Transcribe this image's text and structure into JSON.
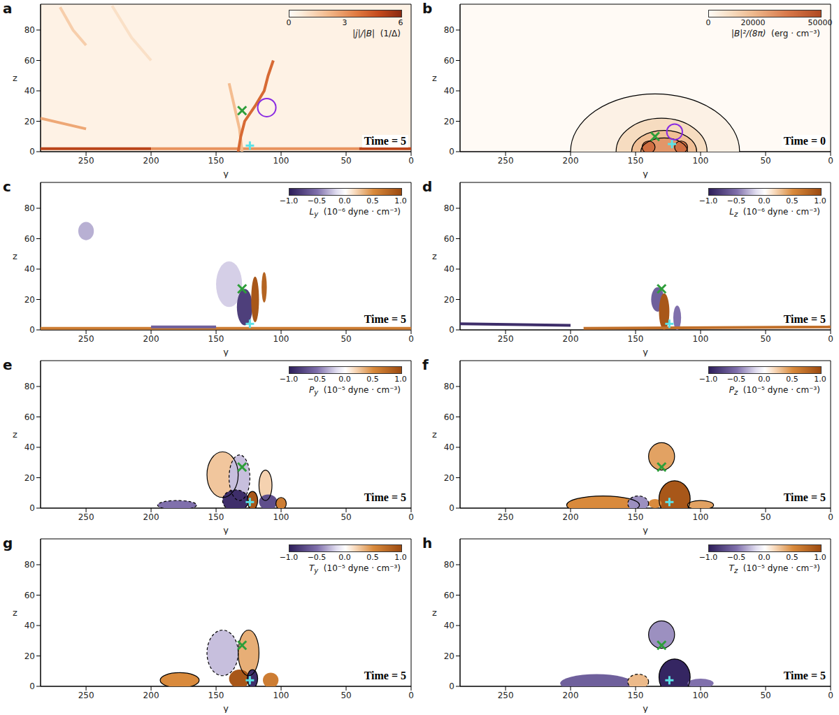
{
  "chart_data": [
    {
      "type": "heatmap",
      "label": "a",
      "annotation": "Time = 5",
      "x_label": "y",
      "y_label": "z",
      "xlim": [
        0,
        285
      ],
      "ylim": [
        0,
        97
      ],
      "xticks": [
        0,
        50,
        100,
        150,
        200,
        250
      ],
      "yticks": [
        0,
        20,
        40,
        60,
        80
      ],
      "background": 0.4,
      "colorbar": {
        "symbol": "|j|/|B|",
        "unit": "(1/Δ)",
        "range": [
          0,
          6
        ],
        "ticks": [
          0,
          3,
          6
        ]
      },
      "features": [],
      "streaks": [
        {
          "points": [
            [
              285,
              2
            ],
            [
              200,
              2
            ]
          ],
          "value": 5
        },
        {
          "points": [
            [
              200,
              2
            ],
            [
              40,
              2
            ]
          ],
          "value": 3
        },
        {
          "points": [
            [
              40,
              2
            ],
            [
              0,
              2
            ]
          ],
          "value": 5
        },
        {
          "points": [
            [
              285,
              22
            ],
            [
              265,
              18
            ],
            [
              250,
              15
            ]
          ],
          "value": 2.5
        },
        {
          "points": [
            [
              270,
              95
            ],
            [
              260,
              80
            ],
            [
              250,
              70
            ]
          ],
          "value": 1.5
        },
        {
          "points": [
            [
              230,
              96
            ],
            [
              215,
              75
            ],
            [
              200,
              60
            ]
          ],
          "value": 1
        },
        {
          "points": [
            [
              130,
              0
            ],
            [
              132,
              15
            ],
            [
              136,
              30
            ],
            [
              140,
              45
            ]
          ],
          "value": 2
        },
        {
          "points": [
            [
              133,
              0
            ],
            [
              131,
              10
            ],
            [
              128,
              20
            ],
            [
              120,
              30
            ],
            [
              113,
              40
            ],
            [
              110,
              50
            ],
            [
              106,
              60
            ]
          ],
          "value": 4
        }
      ],
      "markers": [
        {
          "y": 130,
          "z": 27,
          "marker": "x",
          "color": "#2e9e3a"
        },
        {
          "y": 124,
          "z": 4,
          "marker": "+",
          "color": "#5ce1e6"
        }
      ],
      "circles": [
        {
          "y": 111,
          "z": 29,
          "r": 7,
          "color": "#8a2be2"
        }
      ]
    },
    {
      "type": "heatmap",
      "label": "b",
      "annotation": "Time = 0",
      "x_label": "y",
      "y_label": "z",
      "xlim": [
        0,
        285
      ],
      "ylim": [
        0,
        97
      ],
      "xticks": [
        0,
        50,
        100,
        150,
        200,
        250
      ],
      "yticks": [
        0,
        20,
        40,
        60,
        80
      ],
      "background": 0,
      "colorbar": {
        "symbol": "|B|²/(8π)",
        "unit": "(erg · cm⁻³)",
        "range": [
          0,
          50000
        ],
        "ticks": [
          0,
          20000,
          50000
        ]
      },
      "features": [
        {
          "y": 135,
          "z": 0,
          "ry": 65,
          "rz": 38,
          "value": 3000,
          "line_style": "solid"
        },
        {
          "y": 130,
          "z": 0,
          "ry": 35,
          "rz": 22,
          "value": 10000,
          "line_style": "solid"
        },
        {
          "y": 128,
          "z": 0,
          "ry": 25,
          "rz": 14,
          "value": 18000,
          "line_style": "solid"
        },
        {
          "y": 128,
          "z": 0,
          "ry": 18,
          "rz": 9,
          "value": 28000,
          "line_style": "solid"
        },
        {
          "y": 140,
          "z": 3,
          "ry": 5,
          "rz": 4,
          "value": 38000,
          "line_style": "solid"
        },
        {
          "y": 115,
          "z": 3,
          "ry": 5,
          "rz": 4,
          "value": 38000,
          "line_style": "solid"
        }
      ],
      "streaks": [],
      "markers": [
        {
          "y": 135,
          "z": 10,
          "marker": "x",
          "color": "#2e9e3a"
        },
        {
          "y": 122,
          "z": 5,
          "marker": "+",
          "color": "#5ce1e6"
        }
      ],
      "circles": [
        {
          "y": 120,
          "z": 13,
          "r": 6,
          "color": "#8a2be2"
        }
      ]
    },
    {
      "type": "heatmap",
      "label": "c",
      "annotation": "Time = 5",
      "x_label": "y",
      "y_label": "z",
      "xlim": [
        0,
        285
      ],
      "ylim": [
        0,
        97
      ],
      "xticks": [
        0,
        50,
        100,
        150,
        200,
        250
      ],
      "yticks": [
        0,
        20,
        40,
        60,
        80
      ],
      "background": 0,
      "colorbar": {
        "symbol": "L",
        "sub": "y",
        "unit": "(10⁻⁶ dyne · cm⁻³)",
        "range": [
          -1,
          1
        ],
        "ticks": [
          {
            "value": -1,
            "label": "−1.0"
          },
          {
            "value": -0.5,
            "label": "−0.5"
          },
          {
            "value": 0,
            "label": "0.0"
          },
          {
            "value": 0.5,
            "label": "0.5"
          },
          {
            "value": 1,
            "label": "1.0"
          }
        ]
      },
      "features": [
        {
          "y": 140,
          "z": 30,
          "ry": 10,
          "rz": 15,
          "value": -0.2
        },
        {
          "y": 250,
          "z": 65,
          "ry": 6,
          "rz": 6,
          "value": -0.3
        },
        {
          "y": 128,
          "z": 15,
          "ry": 6,
          "rz": 12,
          "value": -0.8
        },
        {
          "y": 120,
          "z": 20,
          "ry": 3,
          "rz": 15,
          "value": 0.9
        },
        {
          "y": 113,
          "z": 28,
          "ry": 2,
          "rz": 10,
          "value": 0.8
        }
      ],
      "streaks": [
        {
          "points": [
            [
              285,
              1
            ],
            [
              0,
              1
            ]
          ],
          "value": 0.6
        },
        {
          "points": [
            [
              200,
              2
            ],
            [
              150,
              2
            ]
          ],
          "value": -0.6
        }
      ],
      "markers": [
        {
          "y": 130,
          "z": 27,
          "marker": "x",
          "color": "#2e9e3a"
        },
        {
          "y": 124,
          "z": 4,
          "marker": "+",
          "color": "#5ce1e6"
        }
      ],
      "circles": []
    },
    {
      "type": "heatmap",
      "label": "d",
      "annotation": "Time = 5",
      "x_label": "y",
      "y_label": "z",
      "xlim": [
        0,
        285
      ],
      "ylim": [
        0,
        97
      ],
      "xticks": [
        0,
        50,
        100,
        150,
        200,
        250
      ],
      "yticks": [
        0,
        20,
        40,
        60,
        80
      ],
      "background": 0,
      "colorbar": {
        "symbol": "L",
        "sub": "z",
        "unit": "(10⁻⁶ dyne · cm⁻³)",
        "range": [
          -1,
          1
        ],
        "ticks": [
          {
            "value": -1,
            "label": "−1.0"
          },
          {
            "value": -0.5,
            "label": "−0.5"
          },
          {
            "value": 0,
            "label": "0.0"
          },
          {
            "value": 0.5,
            "label": "0.5"
          },
          {
            "value": 1,
            "label": "1.0"
          }
        ]
      },
      "features": [
        {
          "y": 133,
          "z": 20,
          "ry": 5,
          "rz": 8,
          "value": -0.6
        },
        {
          "y": 118,
          "z": 8,
          "ry": 3,
          "rz": 8,
          "value": -0.5
        },
        {
          "y": 128,
          "z": 12,
          "ry": 4,
          "rz": 12,
          "value": 0.9
        }
      ],
      "streaks": [
        {
          "points": [
            [
              285,
              4
            ],
            [
              200,
              3
            ]
          ],
          "value": -0.9
        },
        {
          "points": [
            [
              190,
              1
            ],
            [
              0,
              2
            ]
          ],
          "value": 0.7
        }
      ],
      "markers": [
        {
          "y": 130,
          "z": 27,
          "marker": "x",
          "color": "#2e9e3a"
        },
        {
          "y": 124,
          "z": 4,
          "marker": "+",
          "color": "#5ce1e6"
        }
      ],
      "circles": []
    },
    {
      "type": "heatmap",
      "label": "e",
      "annotation": "Time = 5",
      "x_label": "y",
      "y_label": "z",
      "xlim": [
        0,
        285
      ],
      "ylim": [
        0,
        97
      ],
      "xticks": [
        0,
        50,
        100,
        150,
        200,
        250
      ],
      "yticks": [
        0,
        20,
        40,
        60,
        80
      ],
      "background": 0,
      "colorbar": {
        "symbol": "P",
        "sub": "y",
        "unit": "(10⁻⁵ dyne · cm⁻³)",
        "range": [
          -1,
          1
        ],
        "ticks": [
          {
            "value": -1,
            "label": "−1.0"
          },
          {
            "value": -0.5,
            "label": "−0.5"
          },
          {
            "value": 0,
            "label": "0.0"
          },
          {
            "value": 0.5,
            "label": "0.5"
          },
          {
            "value": 1,
            "label": "1.0"
          }
        ]
      },
      "features": [
        {
          "y": 145,
          "z": 22,
          "ry": 12,
          "rz": 15,
          "value": 0.25,
          "line_style": "solid"
        },
        {
          "y": 132,
          "z": 20,
          "ry": 8,
          "rz": 15,
          "value": -0.25,
          "line_style": "dashed"
        },
        {
          "y": 112,
          "z": 15,
          "ry": 5,
          "rz": 10,
          "value": 0.2,
          "line_style": "solid"
        },
        {
          "y": 180,
          "z": 2,
          "ry": 15,
          "rz": 3,
          "value": -0.5,
          "line_style": "dashed"
        },
        {
          "y": 135,
          "z": 5,
          "ry": 10,
          "rz": 7,
          "value": -0.9,
          "line_style": "dashed"
        },
        {
          "y": 122,
          "z": 5,
          "ry": 4,
          "rz": 6,
          "value": 0.9,
          "line_style": "solid"
        },
        {
          "y": 110,
          "z": 4,
          "ry": 7,
          "rz": 5,
          "value": -0.7
        },
        {
          "y": 100,
          "z": 3,
          "ry": 4,
          "rz": 4,
          "value": 0.6,
          "line_style": "solid"
        }
      ],
      "streaks": [],
      "markers": [
        {
          "y": 130,
          "z": 27,
          "marker": "x",
          "color": "#2e9e3a"
        },
        {
          "y": 124,
          "z": 4,
          "marker": "+",
          "color": "#5ce1e6"
        }
      ],
      "circles": []
    },
    {
      "type": "heatmap",
      "label": "f",
      "annotation": "Time = 5",
      "x_label": "y",
      "y_label": "z",
      "xlim": [
        0,
        285
      ],
      "ylim": [
        0,
        97
      ],
      "xticks": [
        0,
        50,
        100,
        150,
        200,
        250
      ],
      "yticks": [
        0,
        20,
        40,
        60,
        80
      ],
      "background": 0,
      "colorbar": {
        "symbol": "P",
        "sub": "z",
        "unit": "(10⁻⁵ dyne · cm⁻³)",
        "range": [
          -1,
          1
        ],
        "ticks": [
          {
            "value": -1,
            "label": "−1.0"
          },
          {
            "value": -0.5,
            "label": "−0.5"
          },
          {
            "value": 0,
            "label": "0.0"
          },
          {
            "value": 0.5,
            "label": "0.5"
          },
          {
            "value": 1,
            "label": "1.0"
          }
        ]
      },
      "features": [
        {
          "y": 130,
          "z": 34,
          "ry": 10,
          "rz": 9,
          "value": 0.4,
          "line_style": "solid"
        },
        {
          "y": 175,
          "z": 2,
          "ry": 28,
          "rz": 6,
          "value": 0.5,
          "line_style": "solid"
        },
        {
          "y": 148,
          "z": 3,
          "ry": 8,
          "rz": 5,
          "value": -0.4,
          "line_style": "dashed"
        },
        {
          "y": 120,
          "z": 6,
          "ry": 12,
          "rz": 12,
          "value": 0.9,
          "line_style": "solid"
        },
        {
          "y": 135,
          "z": 3,
          "ry": 5,
          "rz": 3,
          "value": 0.5
        },
        {
          "y": 100,
          "z": 2,
          "ry": 10,
          "rz": 3,
          "value": 0.4,
          "line_style": "solid"
        }
      ],
      "streaks": [],
      "markers": [
        {
          "y": 130,
          "z": 27,
          "marker": "x",
          "color": "#2e9e3a"
        },
        {
          "y": 124,
          "z": 4,
          "marker": "+",
          "color": "#5ce1e6"
        }
      ],
      "circles": []
    },
    {
      "type": "heatmap",
      "label": "g",
      "annotation": "Time = 5",
      "x_label": "y",
      "y_label": "z",
      "xlim": [
        0,
        285
      ],
      "ylim": [
        0,
        97
      ],
      "xticks": [
        0,
        50,
        100,
        150,
        200,
        250
      ],
      "yticks": [
        0,
        20,
        40,
        60,
        80
      ],
      "background": 0,
      "colorbar": {
        "symbol": "T",
        "sub": "y",
        "unit": "(10⁻⁵ dyne · cm⁻³)",
        "range": [
          -1,
          1
        ],
        "ticks": [
          {
            "value": -1,
            "label": "−1.0"
          },
          {
            "value": -0.5,
            "label": "−0.5"
          },
          {
            "value": 0,
            "label": "0.0"
          },
          {
            "value": 0.5,
            "label": "0.5"
          },
          {
            "value": 1,
            "label": "1.0"
          }
        ]
      },
      "features": [
        {
          "y": 145,
          "z": 22,
          "ry": 12,
          "rz": 15,
          "value": -0.25,
          "line_style": "dashed"
        },
        {
          "y": 125,
          "z": 22,
          "ry": 8,
          "rz": 15,
          "value": 0.35,
          "line_style": "solid"
        },
        {
          "y": 178,
          "z": 4,
          "ry": 15,
          "rz": 5,
          "value": 0.5,
          "line_style": "solid"
        },
        {
          "y": 132,
          "z": 5,
          "ry": 8,
          "rz": 6,
          "value": 0.9
        },
        {
          "y": 122,
          "z": 5,
          "ry": 4,
          "rz": 6,
          "value": -0.9,
          "line_style": "solid"
        },
        {
          "y": 108,
          "z": 4,
          "ry": 6,
          "rz": 5,
          "value": 0.6
        }
      ],
      "streaks": [],
      "markers": [
        {
          "y": 130,
          "z": 27,
          "marker": "x",
          "color": "#2e9e3a"
        },
        {
          "y": 124,
          "z": 4,
          "marker": "+",
          "color": "#5ce1e6"
        }
      ],
      "circles": []
    },
    {
      "type": "heatmap",
      "label": "h",
      "annotation": "Time = 5",
      "x_label": "y",
      "y_label": "z",
      "xlim": [
        0,
        285
      ],
      "ylim": [
        0,
        97
      ],
      "xticks": [
        0,
        50,
        100,
        150,
        200,
        250
      ],
      "yticks": [
        0,
        20,
        40,
        60,
        80
      ],
      "background": 0,
      "colorbar": {
        "symbol": "T",
        "sub": "z",
        "unit": "(10⁻⁵ dyne · cm⁻³)",
        "range": [
          -1,
          1
        ],
        "ticks": [
          {
            "value": -1,
            "label": "−1.0"
          },
          {
            "value": -0.5,
            "label": "−0.5"
          },
          {
            "value": 0,
            "label": "0.0"
          },
          {
            "value": 0.5,
            "label": "0.5"
          },
          {
            "value": 1,
            "label": "1.0"
          }
        ]
      },
      "features": [
        {
          "y": 130,
          "z": 34,
          "ry": 10,
          "rz": 9,
          "value": -0.4,
          "line_style": "solid"
        },
        {
          "y": 180,
          "z": 2,
          "ry": 28,
          "rz": 6,
          "value": -0.6
        },
        {
          "y": 148,
          "z": 3,
          "ry": 8,
          "rz": 5,
          "value": 0.3,
          "line_style": "dashed"
        },
        {
          "y": 120,
          "z": 6,
          "ry": 12,
          "rz": 12,
          "value": -0.95,
          "line_style": "solid"
        },
        {
          "y": 100,
          "z": 2,
          "ry": 10,
          "rz": 3,
          "value": -0.5
        }
      ],
      "streaks": [],
      "markers": [
        {
          "y": 130,
          "z": 27,
          "marker": "x",
          "color": "#2e9e3a"
        },
        {
          "y": 124,
          "z": 4,
          "marker": "+",
          "color": "#5ce1e6"
        }
      ],
      "circles": []
    }
  ]
}
